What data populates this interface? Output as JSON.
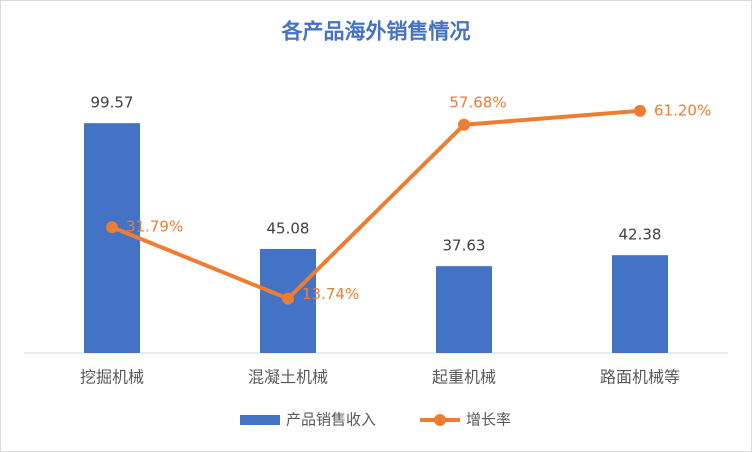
{
  "chart_data": {
    "type": "bar-line",
    "title": "各产品海外销售情况",
    "categories": [
      "挖掘机械",
      "混凝土机械",
      "起重机械",
      "路面机械等"
    ],
    "series": [
      {
        "name": "产品销售收入",
        "type": "bar",
        "color": "#4472c4",
        "values": [
          99.57,
          45.08,
          37.63,
          42.38
        ]
      },
      {
        "name": "增长率",
        "type": "line",
        "axis": "y2",
        "color": "#ed7d31",
        "values": [
          31.79,
          13.74,
          57.68,
          61.2
        ],
        "value_labels": [
          "31.79%",
          "13.74%",
          "57.68%",
          "61.20%"
        ]
      }
    ],
    "ylim": [
      0,
      120
    ],
    "y2lim": [
      0,
      70
    ],
    "legend": "bottom"
  }
}
